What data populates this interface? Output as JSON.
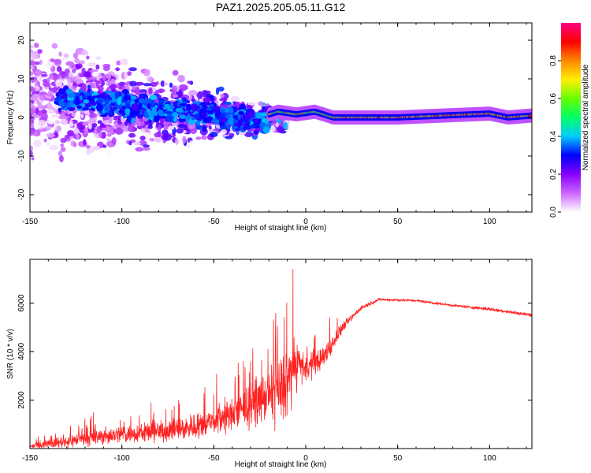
{
  "figure": {
    "title": "PAZ1.2025.205.05.11.G12"
  },
  "chart_data": [
    {
      "type": "heatmap",
      "xlabel": "Height of straight line (km)",
      "ylabel": "Frequency (Hz)",
      "xlim": [
        -150,
        123
      ],
      "ylim": [
        -24.5,
        24.5
      ],
      "xticks": [
        -150,
        -100,
        -50,
        0,
        50,
        100
      ],
      "yticks": [
        -20,
        -10,
        0,
        10,
        20
      ],
      "colorbar": {
        "label": "Normalized spectral amplitude",
        "range": [
          0,
          1
        ],
        "ticks": [
          "0.0",
          "0.2",
          "0.4",
          "0.6",
          "0.8"
        ],
        "colors": [
          "#ffffff",
          "#cc66ff",
          "#8800ff",
          "#0000ff",
          "#00ccff",
          "#00ff66",
          "#66ff00",
          "#ffee00",
          "#ff8800",
          "#ff0000",
          "#ff0088"
        ]
      },
      "ridge": {
        "description_points": [
          [
            -25,
            0
          ],
          [
            -15,
            1.5
          ],
          [
            -5,
            0.8
          ],
          [
            5,
            1.5
          ],
          [
            15,
            0
          ],
          [
            50,
            0
          ],
          [
            90,
            0.8
          ],
          [
            100,
            1
          ],
          [
            110,
            0
          ],
          [
            123,
            0.5
          ]
        ],
        "amplitude_range": [
          0.3,
          0.95
        ]
      }
    },
    {
      "type": "line",
      "xlabel": "Height of straight line (km)",
      "ylabel": "SNR (10 * v/v)",
      "xlim": [
        -150,
        123
      ],
      "ylim": [
        0,
        7800
      ],
      "xticks": [
        -150,
        -100,
        -50,
        0,
        50,
        100
      ],
      "yticks": [
        2000,
        4000,
        6000
      ],
      "color": "#ff2222",
      "envelope": {
        "x": [
          -150,
          -130,
          -100,
          -80,
          -60,
          -40,
          -20,
          -10,
          -5,
          0,
          10,
          20,
          30,
          40,
          60,
          80,
          100,
          123
        ],
        "mean": [
          100,
          300,
          600,
          700,
          900,
          1400,
          2200,
          2700,
          3500,
          3300,
          3800,
          5000,
          5800,
          6150,
          6100,
          5900,
          5750,
          5500
        ],
        "spread": [
          100,
          350,
          500,
          550,
          700,
          900,
          1300,
          2200,
          1200,
          700,
          600,
          300,
          150,
          100,
          80,
          80,
          120,
          100
        ]
      }
    }
  ]
}
